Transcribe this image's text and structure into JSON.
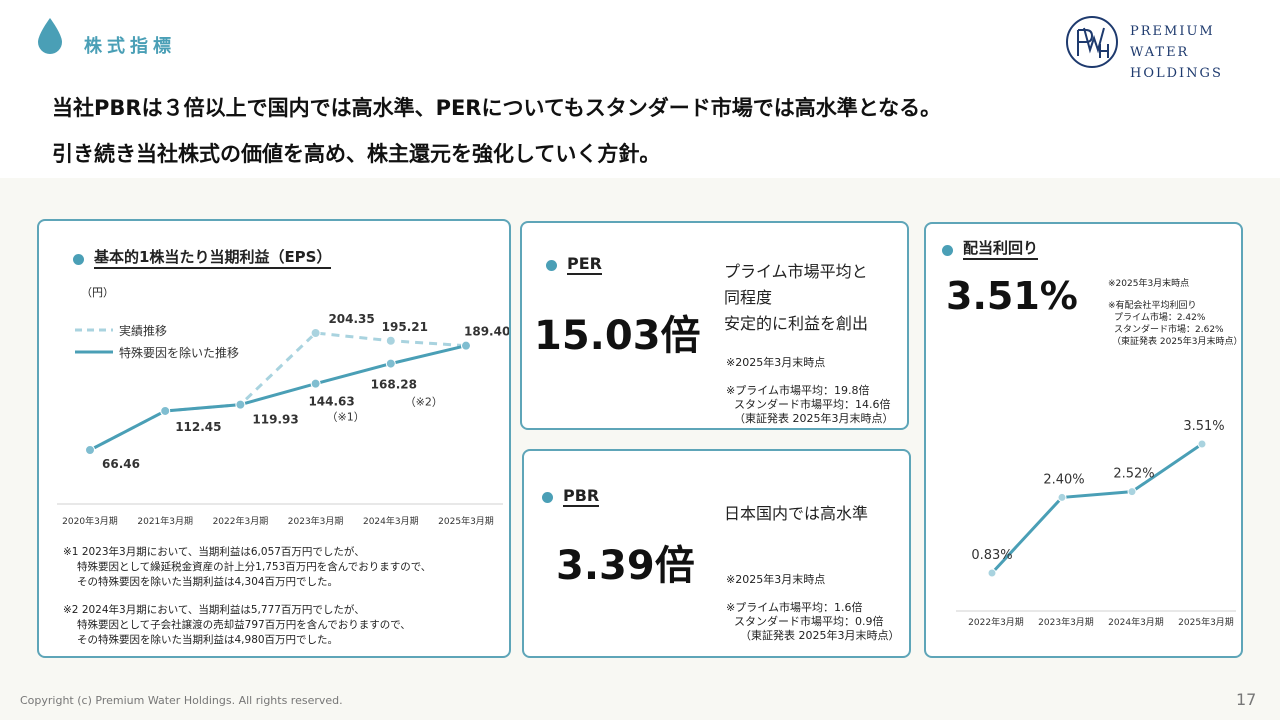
{
  "header": {
    "section_title": "株式指標",
    "logo_line1": "Premium Water",
    "logo_line2": "Holdings",
    "headline1": "当社PBRは３倍以上で国内では高水準、PERについてもスタンダード市場では高水準となる。",
    "headline2": "引き続き当社株式の価値を高め、株主還元を強化していく方針。"
  },
  "eps": {
    "title": "基本的1株当たり当期利益（EPS）",
    "unit": "（円）",
    "legend_actual": "実績推移",
    "legend_adjusted": "特殊要因を除いた推移",
    "note_mark1": "（※1）",
    "note_mark2": "（※2）",
    "notes": [
      "※1 2023年3月期において、当期利益は6,057百万円でしたが、",
      "特殊要因として繰延税金資産の計上分1,753百万円を含んでおりますので、",
      "その特殊要因を除いた当期利益は4,304百万円でした。",
      "※2 2024年3月期において、当期利益は5,777百万円でしたが、",
      "特殊要因として子会社譲渡の売却益797百万円を含んでおりますので、",
      "その特殊要因を除いた当期利益は4,980百万円でした。"
    ]
  },
  "per": {
    "title": "PER",
    "value": "15.03倍",
    "desc1": "プライム市場平均と",
    "desc2": "同程度",
    "desc3": "安定的に利益を創出",
    "asof": "※2025年3月末時点",
    "avg1": "※プライム市場平均：19.8倍",
    "avg2": "スタンダード市場平均：14.6倍",
    "src": "（東証発表 2025年3月末時点）"
  },
  "pbr": {
    "title": "PBR",
    "value": "3.39倍",
    "desc": "日本国内では高水準",
    "asof": "※2025年3月末時点",
    "avg1": "※プライム市場平均：1.6倍",
    "avg2": "スタンダード市場平均：0.9倍",
    "src": "（東証発表 2025年3月末時点）"
  },
  "dividend": {
    "title": "配当利回り",
    "value": "3.51%",
    "asof": "※2025年3月末時点",
    "avg_title": "※有配会社平均利回り",
    "avg1": "プライム市場：2.42%",
    "avg2": "スタンダード市場：2.62%",
    "src": "（東証発表 2025年3月末時点）"
  },
  "chart_data": [
    {
      "type": "line",
      "title": "基本的1株当たり当期利益（EPS）",
      "ylabel": "（円）",
      "categories": [
        "2020年3月期",
        "2021年3月期",
        "2022年3月期",
        "2023年3月期",
        "2024年3月期",
        "2025年3月期"
      ],
      "series": [
        {
          "name": "実績推移",
          "values": [
            66.46,
            112.45,
            119.93,
            204.35,
            195.21,
            189.4
          ],
          "labels": [
            "",
            "",
            "",
            "204.35",
            "195.21",
            ""
          ],
          "style": "dashed",
          "color": "#a9d3df"
        },
        {
          "name": "特殊要因を除いた推移",
          "values": [
            66.46,
            112.45,
            119.93,
            144.63,
            168.28,
            189.4
          ],
          "labels": [
            "66.46",
            "112.45",
            "119.93",
            "144.63",
            "168.28",
            "189.40"
          ],
          "style": "solid",
          "color": "#4a9fb6"
        }
      ],
      "ylim": [
        50,
        220
      ],
      "grid": false,
      "legend": "top-left"
    },
    {
      "type": "line",
      "title": "配当利回り",
      "categories": [
        "2022年3月期",
        "2023年3月期",
        "2024年3月期",
        "2025年3月期"
      ],
      "series": [
        {
          "values": [
            0.83,
            2.4,
            2.52,
            3.51
          ],
          "labels": [
            "0.83%",
            "2.40%",
            "2.52%",
            "3.51%"
          ],
          "style": "solid",
          "color": "#4a9fb6"
        }
      ],
      "ylim": [
        0,
        5
      ],
      "grid": false
    }
  ],
  "footer": {
    "copyright": "Copyright (c) Premium Water Holdings. All rights reserved.",
    "page": "17"
  },
  "colors": {
    "accent": "#4a9fb6",
    "accent_light": "#a9d3df",
    "logo": "#1e3a6e"
  }
}
